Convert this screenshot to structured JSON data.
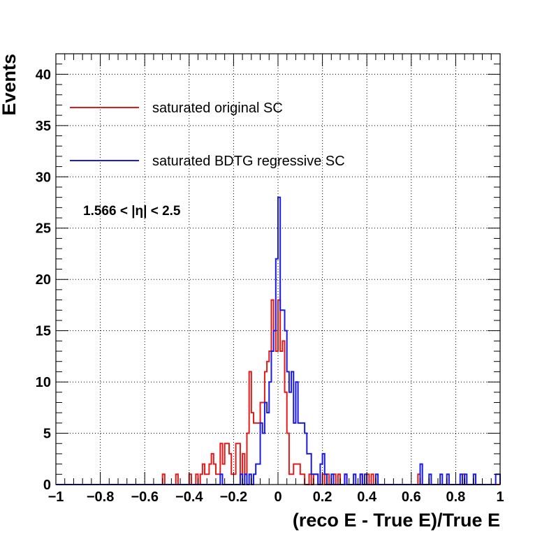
{
  "chart_data": {
    "type": "histogram",
    "xlabel": "(reco E - True E)/True E",
    "ylabel": "Events",
    "xlim": [
      -1,
      1
    ],
    "ylim": [
      0,
      42
    ],
    "bin_width": 0.01,
    "grid": true,
    "legend_placement": "top-left",
    "annotation": "1.566 < |η| < 2.5",
    "x_ticks": [
      {
        "value": -1,
        "label": "−1"
      },
      {
        "value": -0.8,
        "label": "−0.8"
      },
      {
        "value": -0.6,
        "label": "−0.6"
      },
      {
        "value": -0.4,
        "label": "−0.4"
      },
      {
        "value": -0.2,
        "label": "−0.2"
      },
      {
        "value": 0,
        "label": "0"
      },
      {
        "value": 0.2,
        "label": "0.2"
      },
      {
        "value": 0.4,
        "label": "0.4"
      },
      {
        "value": 0.6,
        "label": "0.6"
      },
      {
        "value": 0.8,
        "label": "0.8"
      },
      {
        "value": 1,
        "label": "1"
      }
    ],
    "y_ticks": [
      {
        "value": 0,
        "label": "0"
      },
      {
        "value": 5,
        "label": "5"
      },
      {
        "value": 10,
        "label": "10"
      },
      {
        "value": 15,
        "label": "15"
      },
      {
        "value": 20,
        "label": "20"
      },
      {
        "value": 25,
        "label": "25"
      },
      {
        "value": 30,
        "label": "30"
      },
      {
        "value": 35,
        "label": "35"
      },
      {
        "value": 40,
        "label": "40"
      }
    ],
    "series": [
      {
        "name": "saturated original SC",
        "color": "#e41a1a",
        "bins": [
          [
            -0.52,
            1
          ],
          [
            -0.46,
            1
          ],
          [
            -0.4,
            1
          ],
          [
            -0.37,
            1
          ],
          [
            -0.35,
            1
          ],
          [
            -0.34,
            2
          ],
          [
            -0.33,
            1
          ],
          [
            -0.32,
            1
          ],
          [
            -0.31,
            2
          ],
          [
            -0.3,
            3
          ],
          [
            -0.29,
            2
          ],
          [
            -0.28,
            1
          ],
          [
            -0.27,
            1
          ],
          [
            -0.26,
            4
          ],
          [
            -0.25,
            2
          ],
          [
            -0.24,
            4
          ],
          [
            -0.23,
            4
          ],
          [
            -0.22,
            3
          ],
          [
            -0.21,
            1
          ],
          [
            -0.2,
            1
          ],
          [
            -0.19,
            4
          ],
          [
            -0.18,
            4
          ],
          [
            -0.17,
            1
          ],
          [
            -0.16,
            3
          ],
          [
            -0.15,
            1
          ],
          [
            -0.14,
            5
          ],
          [
            -0.13,
            11
          ],
          [
            -0.12,
            7
          ],
          [
            -0.11,
            6
          ],
          [
            -0.1,
            6
          ],
          [
            -0.09,
            6
          ],
          [
            -0.08,
            8
          ],
          [
            -0.07,
            8
          ],
          [
            -0.06,
            11
          ],
          [
            -0.05,
            12
          ],
          [
            -0.04,
            13
          ],
          [
            -0.03,
            18
          ],
          [
            -0.02,
            15
          ],
          [
            -0.01,
            13
          ],
          [
            0.0,
            18
          ],
          [
            0.01,
            13
          ],
          [
            0.02,
            14
          ],
          [
            0.03,
            9
          ],
          [
            0.04,
            5
          ],
          [
            0.05,
            1
          ],
          [
            0.06,
            1
          ],
          [
            0.07,
            2
          ],
          [
            0.08,
            2
          ],
          [
            0.09,
            2
          ],
          [
            0.1,
            1
          ],
          [
            0.11,
            1
          ],
          [
            0.14,
            1
          ],
          [
            0.16,
            1
          ],
          [
            0.17,
            1
          ],
          [
            0.2,
            1
          ],
          [
            0.22,
            1
          ],
          [
            0.25,
            1
          ],
          [
            0.27,
            1
          ],
          [
            0.3,
            1
          ],
          [
            0.37,
            1
          ],
          [
            0.4,
            1
          ],
          [
            0.42,
            1
          ],
          [
            0.63,
            1
          ],
          [
            0.83,
            1
          ]
        ]
      },
      {
        "name": "saturated BDTG regressive SC",
        "color": "#1a1ae6",
        "bins": [
          [
            -0.26,
            1
          ],
          [
            -0.17,
            1
          ],
          [
            -0.15,
            1
          ],
          [
            -0.13,
            1
          ],
          [
            -0.11,
            1
          ],
          [
            -0.1,
            2
          ],
          [
            -0.09,
            2
          ],
          [
            -0.08,
            6
          ],
          [
            -0.07,
            5
          ],
          [
            -0.06,
            8
          ],
          [
            -0.05,
            7
          ],
          [
            -0.04,
            10
          ],
          [
            -0.03,
            13
          ],
          [
            -0.02,
            15
          ],
          [
            -0.01,
            22
          ],
          [
            0.0,
            28
          ],
          [
            0.01,
            17
          ],
          [
            0.02,
            17
          ],
          [
            0.03,
            15
          ],
          [
            0.04,
            11
          ],
          [
            0.05,
            9
          ],
          [
            0.06,
            11
          ],
          [
            0.07,
            6
          ],
          [
            0.08,
            10
          ],
          [
            0.09,
            6
          ],
          [
            0.1,
            6
          ],
          [
            0.11,
            6
          ],
          [
            0.12,
            5
          ],
          [
            0.13,
            3
          ],
          [
            0.14,
            3
          ],
          [
            0.15,
            1
          ],
          [
            0.16,
            1
          ],
          [
            0.17,
            1
          ],
          [
            0.19,
            2
          ],
          [
            0.2,
            3
          ],
          [
            0.21,
            1
          ],
          [
            0.24,
            1
          ],
          [
            0.3,
            1
          ],
          [
            0.34,
            1
          ],
          [
            0.37,
            1
          ],
          [
            0.39,
            1
          ],
          [
            0.44,
            1
          ],
          [
            0.64,
            2
          ],
          [
            0.68,
            1
          ],
          [
            0.73,
            1
          ],
          [
            0.76,
            1
          ],
          [
            0.82,
            1
          ],
          [
            0.84,
            1
          ],
          [
            0.88,
            1
          ],
          [
            0.98,
            1
          ],
          [
            0.99,
            1
          ]
        ]
      }
    ]
  }
}
